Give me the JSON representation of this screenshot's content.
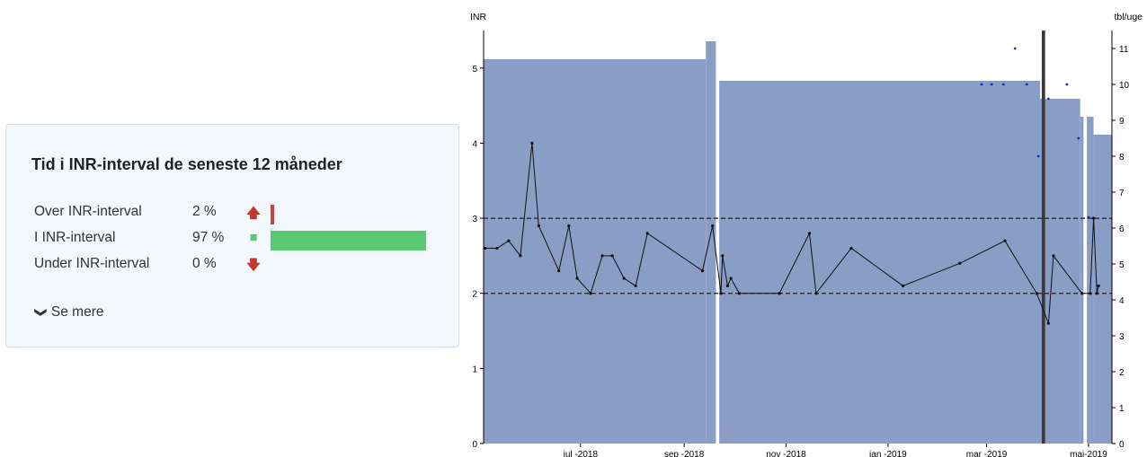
{
  "panel": {
    "title": "Tid i INR-interval de seneste 12 måneder",
    "rows": [
      {
        "label": "Over INR-interval",
        "value_text": "2 %",
        "value": 2,
        "icon": "up-arrow-icon",
        "color": "#c9433a"
      },
      {
        "label": "I INR-interval",
        "value_text": "97 %",
        "value": 97,
        "icon": "square-icon",
        "color": "#5bc873"
      },
      {
        "label": "Under INR-interval",
        "value_text": "0 %",
        "value": 0,
        "icon": "down-arrow-icon",
        "color": "#c9433a"
      }
    ],
    "more_label": "Se mere",
    "more_icon": "chevron-down-icon"
  },
  "chart_data": {
    "type": "line",
    "ylabel": "INR",
    "y2label": "tbl/uge",
    "ylim": [
      0,
      5.5
    ],
    "y2lim": [
      0,
      11.5
    ],
    "yticks": [
      0,
      1,
      2,
      3,
      4,
      5
    ],
    "y2ticks": [
      0,
      1,
      2,
      3,
      4,
      5,
      6,
      7,
      8,
      9,
      10,
      11
    ],
    "xlim": [
      "2018-05-04",
      "2019-05-15"
    ],
    "xticks": [
      {
        "date": "2018-07-01",
        "label": "jul -2018"
      },
      {
        "date": "2018-09-01",
        "label": "sep -2018"
      },
      {
        "date": "2018-11-01",
        "label": "nov -2018"
      },
      {
        "date": "2019-01-01",
        "label": "jan -2019"
      },
      {
        "date": "2019-03-01",
        "label": "mar -2019"
      },
      {
        "date": "2019-05-01",
        "label": "mai-2019"
      }
    ],
    "target_range": [
      2,
      3
    ],
    "colors": {
      "dose": "#8a9dc5",
      "inr": "#111111",
      "target": "#222222",
      "pause": "#3a3a3a",
      "extra": "#2222cc"
    },
    "dose_series": {
      "name": "tbl/uge",
      "steps": [
        {
          "start": "2018-05-04",
          "end": "2018-09-14",
          "value": 10.7
        },
        {
          "start": "2018-09-14",
          "end": "2018-09-20",
          "value": 11.2
        },
        {
          "start": "2018-09-22",
          "end": "2019-04-02",
          "value": 10.1
        },
        {
          "start": "2019-04-02",
          "end": "2019-04-26",
          "value": 9.6
        },
        {
          "start": "2019-04-26",
          "end": "2019-04-28",
          "value": 9.1
        },
        {
          "start": "2019-04-30",
          "end": "2019-05-04",
          "value": 9.1
        },
        {
          "start": "2019-05-04",
          "end": "2019-05-15",
          "value": 8.6
        }
      ],
      "gaps": [
        "2018-09-21",
        "2019-04-29"
      ]
    },
    "pause_marker": {
      "start": "2019-04-03",
      "end": "2019-04-05"
    },
    "series": [
      {
        "name": "INR",
        "points": [
          {
            "x": "2018-05-05",
            "y": 2.6
          },
          {
            "x": "2018-05-12",
            "y": 2.6
          },
          {
            "x": "2018-05-19",
            "y": 2.7
          },
          {
            "x": "2018-05-26",
            "y": 2.5
          },
          {
            "x": "2018-06-02",
            "y": 4.0
          },
          {
            "x": "2018-06-06",
            "y": 2.9
          },
          {
            "x": "2018-06-18",
            "y": 2.3
          },
          {
            "x": "2018-06-24",
            "y": 2.9
          },
          {
            "x": "2018-06-29",
            "y": 2.2
          },
          {
            "x": "2018-07-07",
            "y": 2.0
          },
          {
            "x": "2018-07-14",
            "y": 2.5
          },
          {
            "x": "2018-07-20",
            "y": 2.5
          },
          {
            "x": "2018-07-27",
            "y": 2.2
          },
          {
            "x": "2018-08-03",
            "y": 2.1
          },
          {
            "x": "2018-08-10",
            "y": 2.8
          },
          {
            "x": "2018-09-12",
            "y": 2.3
          },
          {
            "x": "2018-09-18",
            "y": 2.9
          },
          {
            "x": "2018-09-23",
            "y": 2.0
          },
          {
            "x": "2018-09-24",
            "y": 2.5
          },
          {
            "x": "2018-09-27",
            "y": 2.1
          },
          {
            "x": "2018-09-29",
            "y": 2.2
          },
          {
            "x": "2018-10-04",
            "y": 2.0
          },
          {
            "x": "2018-10-28",
            "y": 2.0
          },
          {
            "x": "2018-11-15",
            "y": 2.8
          },
          {
            "x": "2018-11-19",
            "y": 2.0
          },
          {
            "x": "2018-12-10",
            "y": 2.6
          },
          {
            "x": "2019-01-10",
            "y": 2.1
          },
          {
            "x": "2019-02-13",
            "y": 2.4
          },
          {
            "x": "2019-03-12",
            "y": 2.7
          },
          {
            "x": "2019-03-31",
            "y": 2.0
          },
          {
            "x": "2019-04-07",
            "y": 1.6
          },
          {
            "x": "2019-04-10",
            "y": 2.5
          },
          {
            "x": "2019-04-27",
            "y": 2.0
          },
          {
            "x": "2019-05-02",
            "y": 2.0
          },
          {
            "x": "2019-05-04",
            "y": 3.0
          },
          {
            "x": "2019-05-06",
            "y": 2.0
          },
          {
            "x": "2019-05-07",
            "y": 2.1
          }
        ]
      }
    ],
    "extra_points": [
      {
        "x": "2019-02-26",
        "y2": 10
      },
      {
        "x": "2019-03-04",
        "y2": 10
      },
      {
        "x": "2019-03-11",
        "y2": 10
      },
      {
        "x": "2019-03-18",
        "y2": 11
      },
      {
        "x": "2019-03-25",
        "y2": 10
      },
      {
        "x": "2019-04-01",
        "y2": 8
      },
      {
        "x": "2019-04-07",
        "y2": 9.6
      },
      {
        "x": "2019-04-18",
        "y2": 10
      },
      {
        "x": "2019-04-25",
        "y2": 8.5
      },
      {
        "x": "2019-05-01",
        "y2": 6.3
      }
    ]
  }
}
